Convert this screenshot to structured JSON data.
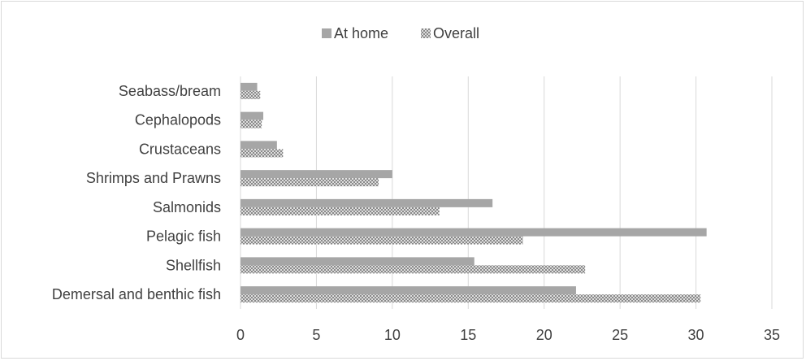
{
  "chart_data": {
    "type": "bar",
    "orientation": "horizontal",
    "categories": [
      "Seabass/bream",
      "Cephalopods",
      "Crustaceans",
      "Shrimps and Prawns",
      "Salmonids",
      "Pelagic fish",
      "Shellfish",
      "Demersal and benthic fish"
    ],
    "series": [
      {
        "name": "At home",
        "values": [
          1.1,
          1.5,
          2.4,
          10.0,
          16.6,
          30.7,
          15.4,
          22.1
        ],
        "color": "#a6a6a6",
        "pattern": "solid"
      },
      {
        "name": "Overall",
        "values": [
          1.3,
          1.4,
          2.8,
          9.1,
          13.1,
          18.6,
          22.7,
          30.3
        ],
        "color": "#a6a6a6",
        "pattern": "crosshatch"
      }
    ],
    "xlim": [
      0,
      35
    ],
    "xticks": [
      0,
      5,
      10,
      15,
      20,
      25,
      30,
      35
    ],
    "grid": true,
    "legend_position": "top"
  }
}
